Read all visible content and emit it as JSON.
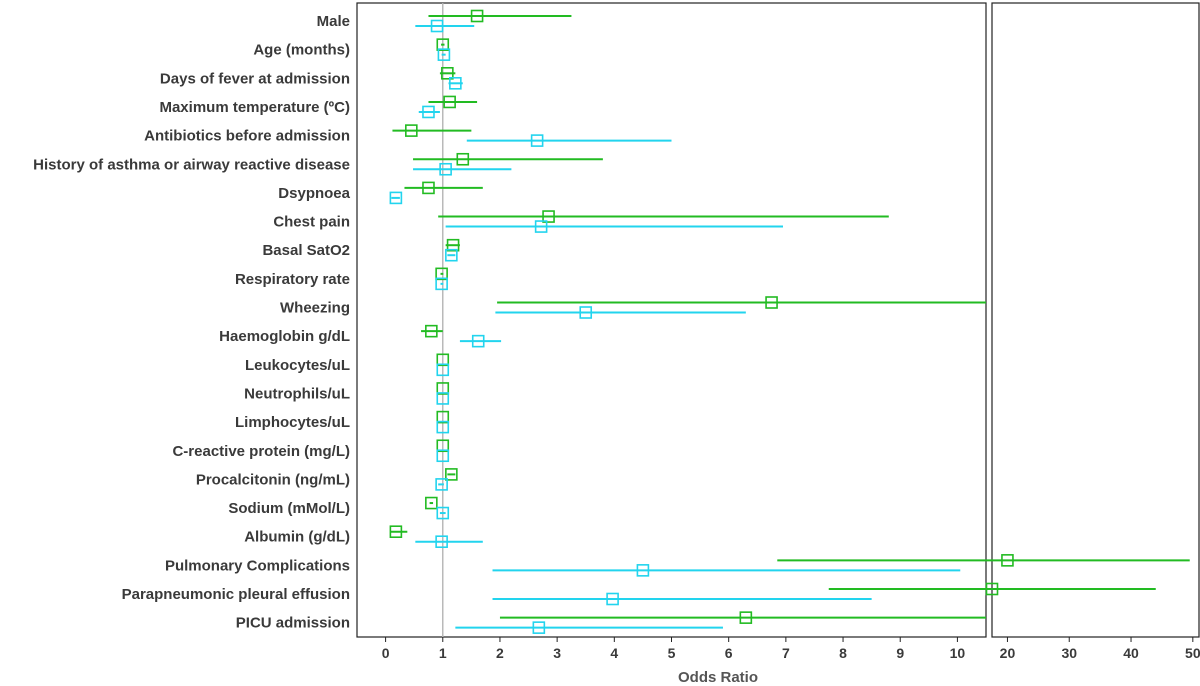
{
  "chart_data": {
    "type": "forest",
    "xlabel": "Odds Ratio",
    "reference_value": 1,
    "left_axis_ticks": [
      "0",
      "1",
      "2",
      "3",
      "4",
      "5",
      "6",
      "7",
      "8",
      "9",
      "10"
    ],
    "right_axis_ticks": [
      "20",
      "30",
      "40",
      "50"
    ],
    "left_range": [
      -0.5,
      10.5
    ],
    "right_range": [
      17.5,
      51
    ],
    "colors": {
      "green": "#22bb22",
      "cyan": "#22d4ee",
      "reference": "#b4b4b4"
    },
    "categories": [
      "Male",
      "Age (months)",
      "Days of fever at admission",
      "Maximum temperature (ºC)",
      "Antibiotics before admission",
      "History of asthma or airway reactive disease",
      "Dsypnoea",
      "Chest pain",
      "Basal SatO2",
      "Respiratory rate",
      "Wheezing",
      "Haemoglobin g/dL",
      "Leukocytes/uL",
      "Neutrophils/uL",
      "Limphocytes/uL",
      "C-reactive protein (mg/L)",
      "Procalcitonin (ng/mL)",
      "Sodium (mMol/L)",
      "Albumin (g/dL)",
      "Pulmonary Complications",
      "Parapneumonic pleural effusion",
      "PICU admission"
    ],
    "series": [
      {
        "color": "green",
        "points": [
          {
            "or": 1.6,
            "lo": 0.75,
            "hi": 3.25
          },
          {
            "or": 1.0,
            "lo": 0.97,
            "hi": 1.03
          },
          {
            "or": 1.08,
            "lo": 0.95,
            "hi": 1.22
          },
          {
            "or": 1.12,
            "lo": 0.75,
            "hi": 1.6
          },
          {
            "or": 0.45,
            "lo": 0.12,
            "hi": 1.5
          },
          {
            "or": 1.35,
            "lo": 0.48,
            "hi": 3.8
          },
          {
            "or": 0.75,
            "lo": 0.33,
            "hi": 1.7
          },
          {
            "or": 2.85,
            "lo": 0.92,
            "hi": 8.8
          },
          {
            "or": 1.18,
            "lo": 1.05,
            "hi": 1.3
          },
          {
            "or": 0.98,
            "lo": 0.96,
            "hi": 1.01
          },
          {
            "or": 6.75,
            "lo": 1.95,
            "hi": 21.5
          },
          {
            "or": 0.8,
            "lo": 0.62,
            "hi": 1.0
          },
          {
            "or": 1.0,
            "lo": 1.0,
            "hi": 1.0
          },
          {
            "or": 1.0,
            "lo": 1.0,
            "hi": 1.0
          },
          {
            "or": 1.0,
            "lo": 1.0,
            "hi": 1.0
          },
          {
            "or": 1.0,
            "lo": 1.0,
            "hi": 1.0
          },
          {
            "or": 1.15,
            "lo": 1.08,
            "hi": 1.22
          },
          {
            "or": 0.8,
            "lo": 0.77,
            "hi": 0.83
          },
          {
            "or": 0.18,
            "lo": 0.08,
            "hi": 0.38
          },
          {
            "or": 20.0,
            "lo": 6.85,
            "hi": 49.5
          },
          {
            "or": 17.5,
            "lo": 7.75,
            "hi": 44.0
          },
          {
            "or": 6.3,
            "lo": 2.0,
            "hi": 25.0
          }
        ]
      },
      {
        "color": "cyan",
        "points": [
          {
            "or": 0.9,
            "lo": 0.52,
            "hi": 1.55
          },
          {
            "or": 1.02,
            "lo": 0.98,
            "hi": 1.05
          },
          {
            "or": 1.22,
            "lo": 1.1,
            "hi": 1.35
          },
          {
            "or": 0.75,
            "lo": 0.58,
            "hi": 0.95
          },
          {
            "or": 2.65,
            "lo": 1.42,
            "hi": 5.0
          },
          {
            "or": 1.05,
            "lo": 0.48,
            "hi": 2.2
          },
          {
            "or": 0.18,
            "lo": 0.1,
            "hi": 0.25
          },
          {
            "or": 2.72,
            "lo": 1.05,
            "hi": 6.95
          },
          {
            "or": 1.15,
            "lo": 1.08,
            "hi": 1.22
          },
          {
            "or": 0.98,
            "lo": 0.96,
            "hi": 1.01
          },
          {
            "or": 3.5,
            "lo": 1.92,
            "hi": 6.3
          },
          {
            "or": 1.62,
            "lo": 1.3,
            "hi": 2.02
          },
          {
            "or": 1.0,
            "lo": 1.0,
            "hi": 1.0
          },
          {
            "or": 1.0,
            "lo": 1.0,
            "hi": 1.0
          },
          {
            "or": 1.0,
            "lo": 1.0,
            "hi": 1.0
          },
          {
            "or": 1.0,
            "lo": 1.0,
            "hi": 1.0
          },
          {
            "or": 0.98,
            "lo": 0.92,
            "hi": 1.02
          },
          {
            "or": 1.0,
            "lo": 0.95,
            "hi": 1.05
          },
          {
            "or": 0.98,
            "lo": 0.52,
            "hi": 1.7
          },
          {
            "or": 4.5,
            "lo": 1.87,
            "hi": 10.05
          },
          {
            "or": 3.97,
            "lo": 1.87,
            "hi": 8.5
          },
          {
            "or": 2.68,
            "lo": 1.22,
            "hi": 5.9
          }
        ]
      }
    ]
  }
}
